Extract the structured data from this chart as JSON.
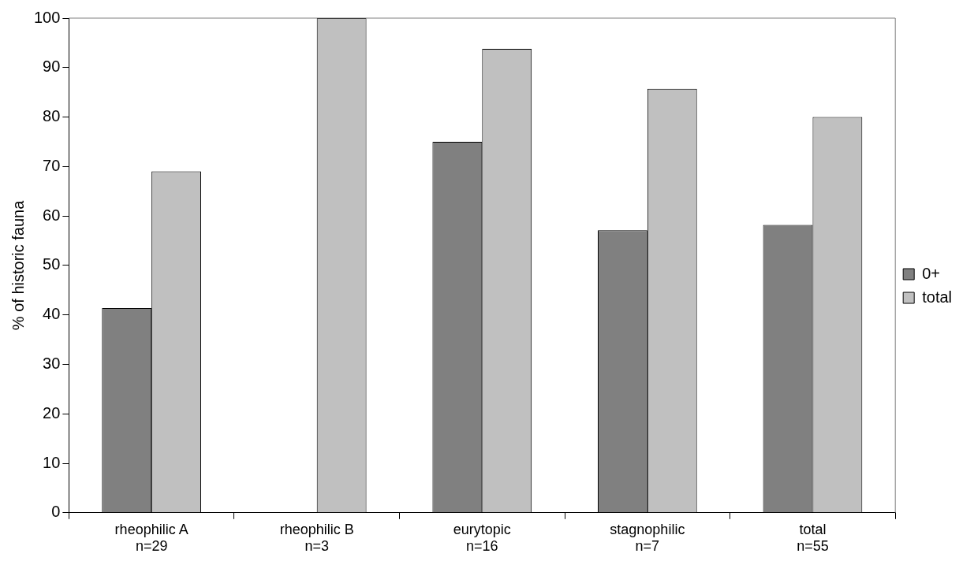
{
  "chart_data": {
    "type": "bar",
    "ylabel": "% of historic fauna",
    "categories": [
      "rheophilic A\nn=29",
      "rheophilic B\nn=3",
      "eurytopic\nn=16",
      "stagnophilic\nn=7",
      "total\nn=55"
    ],
    "series": [
      {
        "name": "0+",
        "color": "#808080",
        "values": [
          41.4,
          0,
          75,
          57.1,
          58.2
        ]
      },
      {
        "name": "total",
        "color": "#c0c0c0",
        "values": [
          69,
          100,
          93.8,
          85.7,
          80
        ]
      }
    ],
    "ylim": [
      0,
      100
    ],
    "yticks": [
      0,
      10,
      20,
      30,
      40,
      50,
      60,
      70,
      80,
      90,
      100
    ],
    "grid": false,
    "legend": "right"
  }
}
